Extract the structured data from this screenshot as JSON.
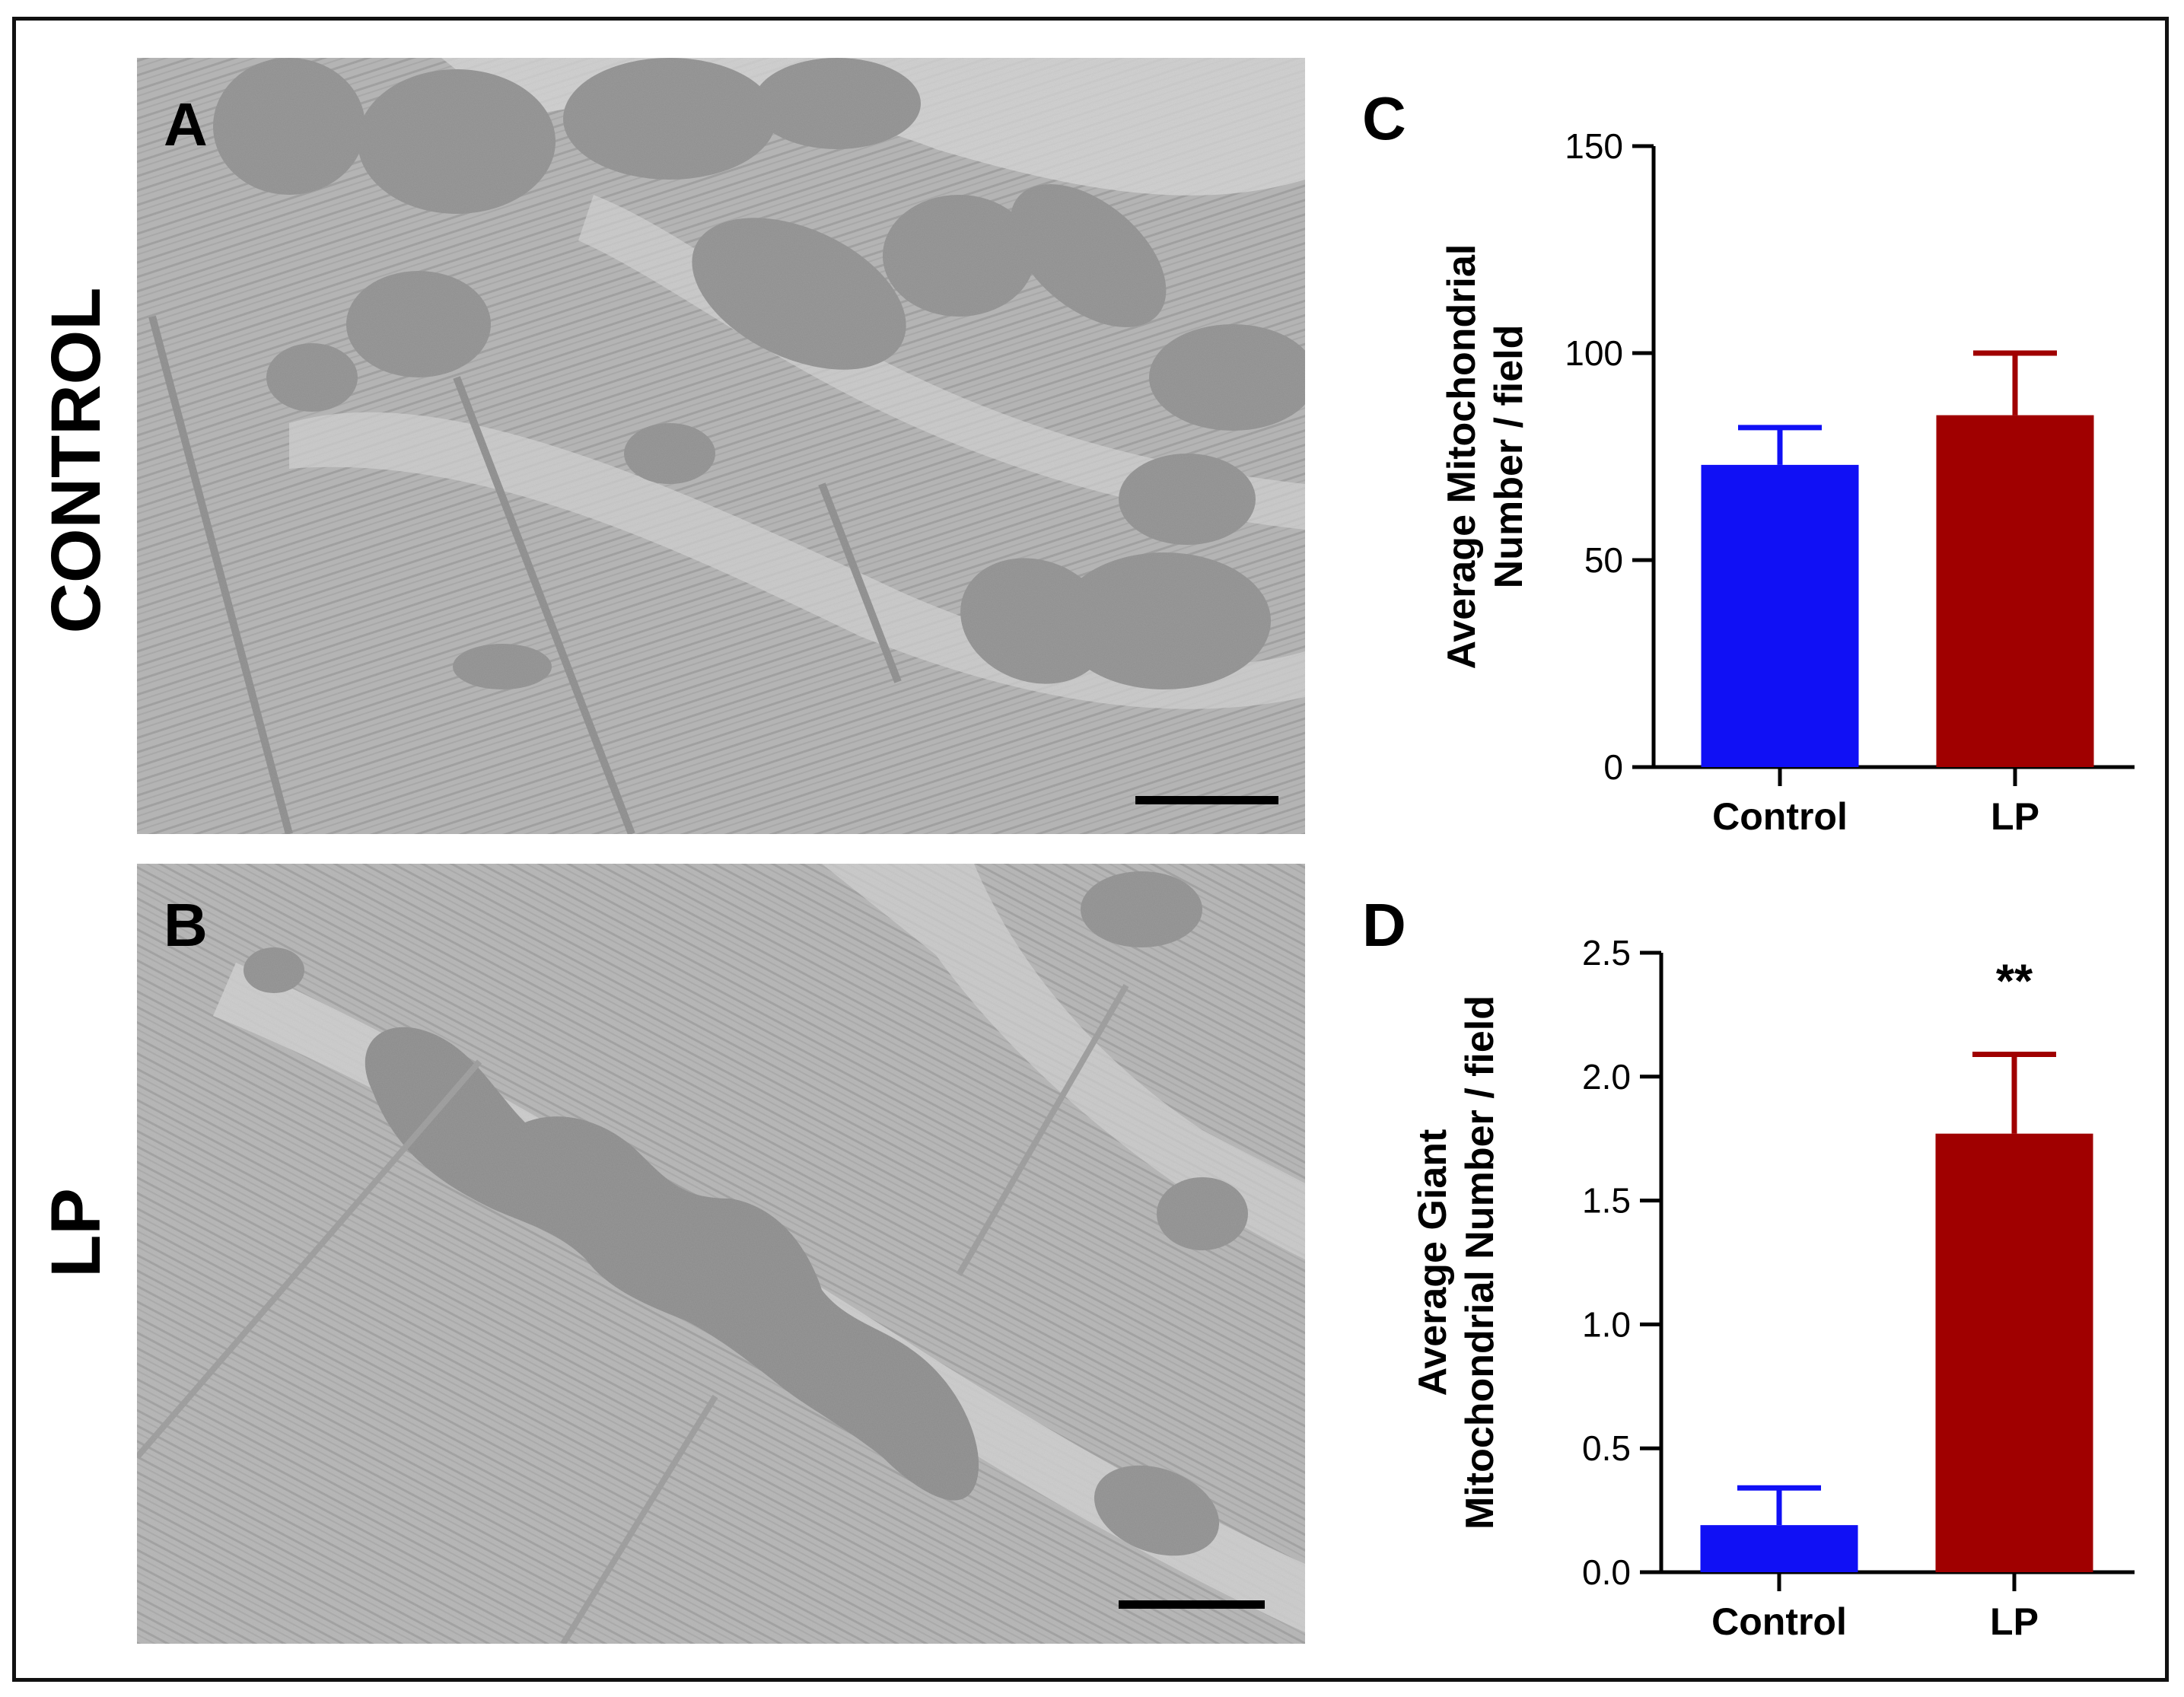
{
  "figure": {
    "row_labels": [
      "CONTROL",
      "LP"
    ],
    "panels": {
      "A": "A",
      "B": "B",
      "C": "C",
      "D": "D"
    },
    "micrograph_colors": {
      "background": "#b8b8b8",
      "organelle": "#8c8c8c",
      "scale_bar": "#000000"
    }
  },
  "chart_data": [
    {
      "panel": "C",
      "type": "bar",
      "categories": [
        "Control",
        "LP"
      ],
      "values": [
        73,
        85
      ],
      "errors": [
        9,
        15
      ],
      "colors": [
        "#1010f5",
        "#a00000"
      ],
      "ylabel_lines": [
        "Average Mitochondrial",
        "Number / field"
      ],
      "ylim": [
        0,
        150
      ],
      "yticks": [
        0,
        50,
        100,
        150
      ],
      "ytick_labels": [
        "0",
        "50",
        "100",
        "150"
      ],
      "annotations": [],
      "grid": false
    },
    {
      "panel": "D",
      "type": "bar",
      "categories": [
        "Control",
        "LP"
      ],
      "values": [
        0.19,
        1.77
      ],
      "errors": [
        0.15,
        0.32
      ],
      "colors": [
        "#1010f5",
        "#a00000"
      ],
      "ylabel_lines": [
        "Average Giant",
        "Mitochondrial Number / field"
      ],
      "ylim": [
        0,
        2.5
      ],
      "yticks": [
        0,
        0.5,
        1.0,
        1.5,
        2.0,
        2.5
      ],
      "ytick_labels": [
        "0.0",
        "0.5",
        "1.0",
        "1.5",
        "2.0",
        "2.5"
      ],
      "annotations": [
        {
          "category": "LP",
          "text": "**"
        }
      ],
      "grid": false
    }
  ]
}
